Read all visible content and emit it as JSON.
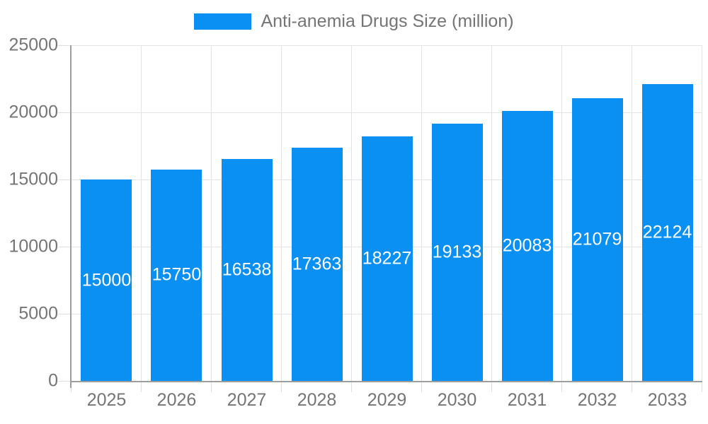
{
  "legend": {
    "label": "Anti-anemia Drugs Size (million)"
  },
  "chart_data": {
    "type": "bar",
    "title": "",
    "xlabel": "",
    "ylabel": "",
    "categories": [
      "2025",
      "2026",
      "2027",
      "2028",
      "2029",
      "2030",
      "2031",
      "2032",
      "2033"
    ],
    "series": [
      {
        "name": "Anti-anemia Drugs Size (million)",
        "values": [
          15000,
          15750,
          16538,
          17363,
          18227,
          19133,
          20083,
          21079,
          22124
        ]
      }
    ],
    "value_labels_shown": true,
    "ylim": [
      0,
      25000
    ],
    "yticks": [
      0,
      5000,
      10000,
      15000,
      20000,
      25000
    ],
    "grid": true,
    "legend_position": "top",
    "colors": {
      "bar": "#0a90f2",
      "value_label": "#ffffff",
      "axis_label": "#757575",
      "axis_line": "#9e9e9e",
      "gridline": "#e3e3e3",
      "background": "#ffffff"
    }
  }
}
